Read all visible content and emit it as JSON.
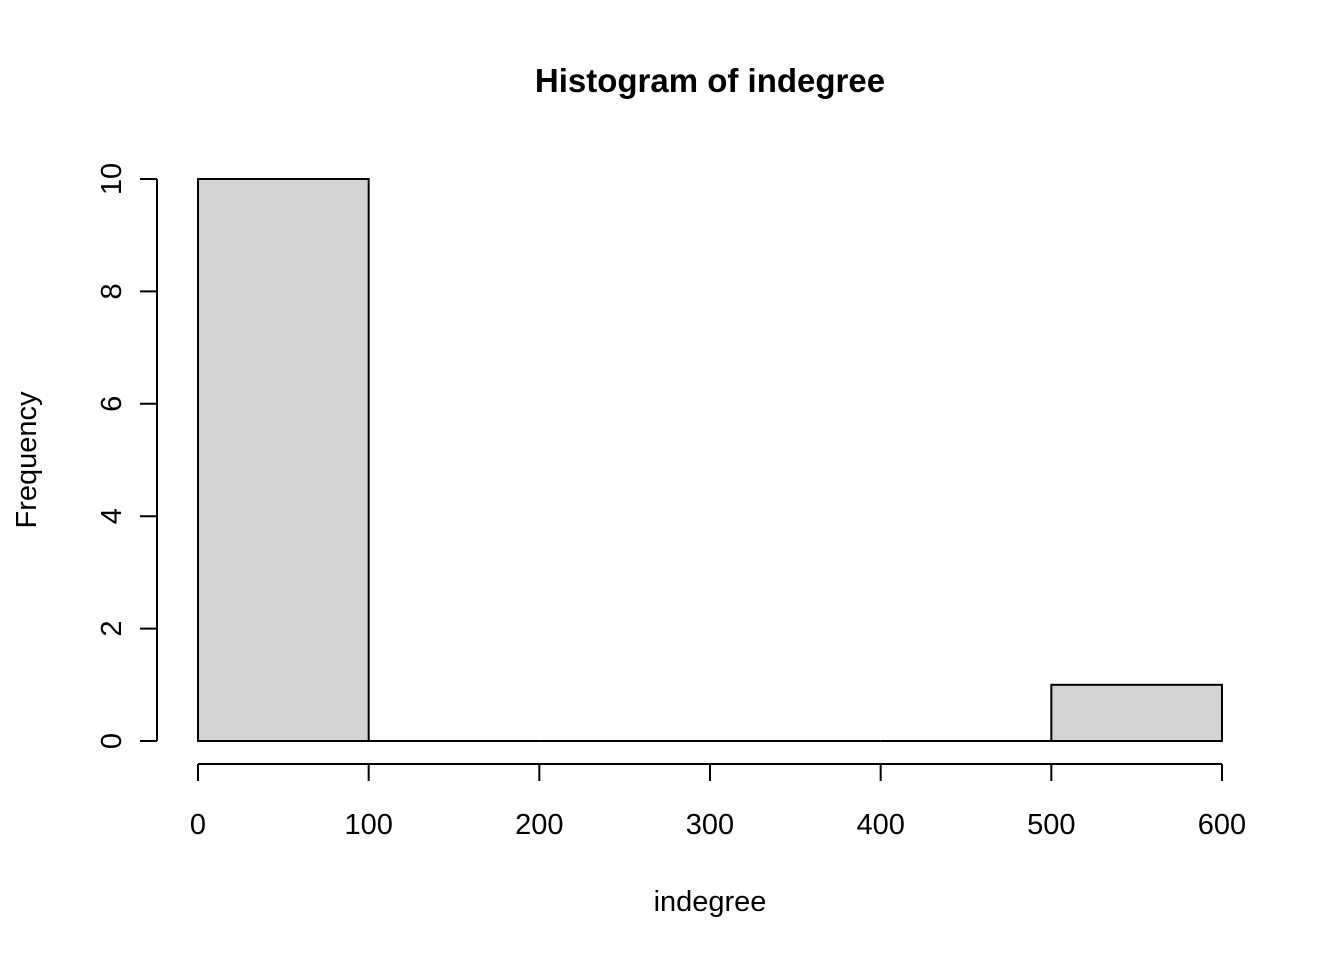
{
  "chart_data": {
    "type": "bar",
    "title": "Histogram of indegree",
    "xlabel": "indegree",
    "ylabel": "Frequency",
    "bins": [
      {
        "start": 0,
        "end": 100,
        "count": 10
      },
      {
        "start": 100,
        "end": 200,
        "count": 0
      },
      {
        "start": 200,
        "end": 300,
        "count": 0
      },
      {
        "start": 300,
        "end": 400,
        "count": 0
      },
      {
        "start": 400,
        "end": 500,
        "count": 0
      },
      {
        "start": 500,
        "end": 600,
        "count": 1
      }
    ],
    "xlim": [
      0,
      600
    ],
    "ylim": [
      0,
      10
    ],
    "x_ticks": [
      0,
      100,
      200,
      300,
      400,
      500,
      600
    ],
    "y_ticks": [
      0,
      2,
      4,
      6,
      8,
      10
    ],
    "grid": false,
    "bar_color": "#d3d3d3",
    "bar_edge_color": "#000000"
  }
}
